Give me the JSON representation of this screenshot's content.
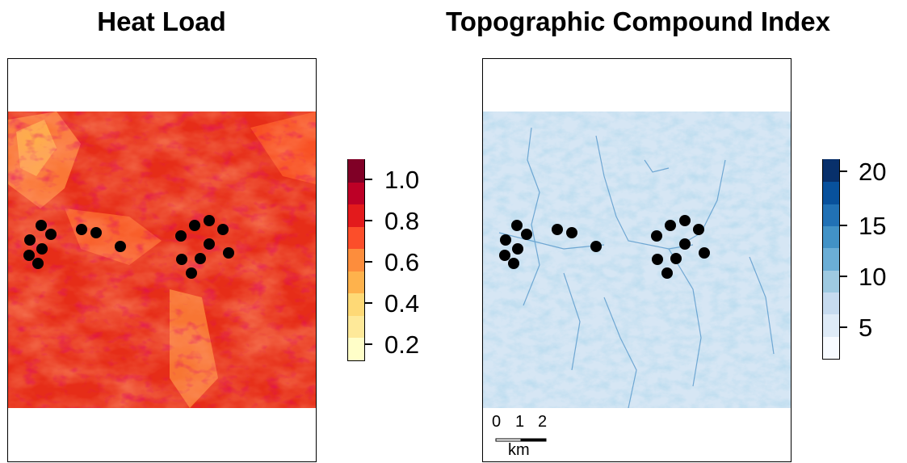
{
  "panels": [
    {
      "title": "Heat Load",
      "legend": {
        "ticks": [
          "1.0",
          "0.8",
          "0.6",
          "0.4",
          "0.2"
        ],
        "colors": [
          "#fffec8",
          "#fee999",
          "#fed976",
          "#feb24c",
          "#fd8d3c",
          "#fc4e2a",
          "#e31a1c",
          "#bd0026",
          "#800026"
        ]
      }
    },
    {
      "title": "Topographic Compound Index",
      "legend": {
        "ticks": [
          "20",
          "15",
          "10",
          "5"
        ],
        "colors": [
          "#f7fbff",
          "#deebf7",
          "#c6dbef",
          "#9ecae1",
          "#6baed6",
          "#4292c6",
          "#2171b5",
          "#08519c",
          "#08306b"
        ]
      },
      "scalebar": {
        "labels": [
          "0",
          "1",
          "2"
        ],
        "unit": "km"
      }
    }
  ]
}
